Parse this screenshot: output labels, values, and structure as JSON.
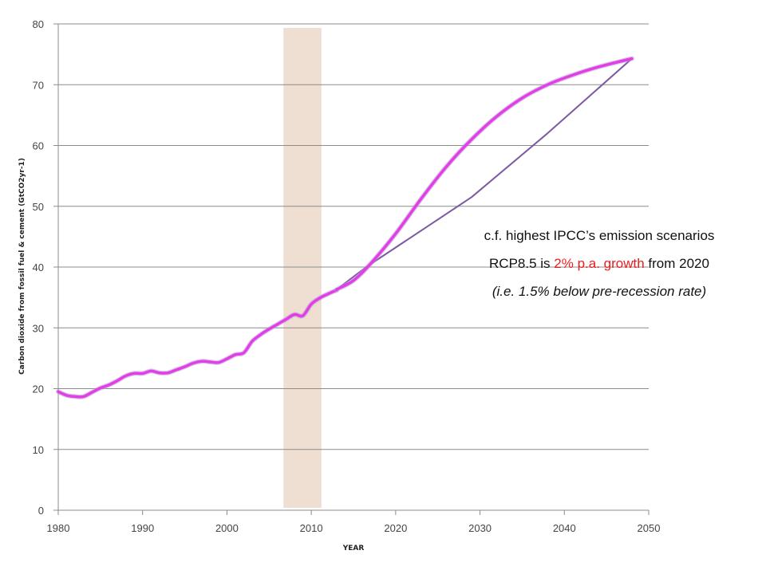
{
  "chart_data": {
    "type": "line",
    "xlabel": "YEAR",
    "ylabel": "Carbon dioxide from fossil fuel & cement (GtCO2yr-1)",
    "xlim": [
      1980,
      2050
    ],
    "ylim": [
      0,
      80
    ],
    "x_ticks": [
      1980,
      1990,
      2000,
      2010,
      2020,
      2030,
      2040,
      2050
    ],
    "y_ticks": [
      0,
      10,
      20,
      30,
      40,
      50,
      60,
      70,
      80
    ],
    "grid": "horizontal",
    "highlight_band": {
      "x_start": 2006.7,
      "x_end": 2011.2,
      "color": "#eedfd2"
    },
    "series": [
      {
        "color": "#e23ee8",
        "x": [
          1980,
          1981,
          1982,
          1983,
          1984,
          1985,
          1986,
          1987,
          1988,
          1989,
          1990,
          1991,
          1992,
          1993,
          1994,
          1995,
          1996,
          1997,
          1998,
          1999,
          2000,
          2001,
          2002,
          2003,
          2004,
          2005,
          2006,
          2007,
          2008,
          2009,
          2010,
          2011,
          2012,
          2013
        ],
        "y": [
          19.5,
          18.9,
          18.7,
          18.7,
          19.4,
          20.1,
          20.6,
          21.3,
          22.1,
          22.5,
          22.5,
          22.9,
          22.6,
          22.6,
          23.1,
          23.6,
          24.2,
          24.5,
          24.4,
          24.3,
          24.9,
          25.6,
          25.9,
          27.8,
          28.9,
          29.8,
          30.6,
          31.4,
          32.2,
          32.0,
          33.9,
          34.9,
          35.6,
          36.2
        ]
      },
      {
        "color": "#e23ee8",
        "x": [
          2013,
          2015,
          2017,
          2020,
          2023,
          2026,
          2029,
          2032,
          2035,
          2038,
          2041,
          2044,
          2048
        ],
        "y": [
          36.3,
          37.8,
          40.5,
          45.5,
          51.2,
          56.5,
          61.0,
          64.8,
          67.8,
          70.0,
          71.6,
          72.9,
          74.3
        ]
      },
      {
        "color": "#7b5aa2",
        "x": [
          2013,
          2016.5,
          2029,
          2038,
          2048
        ],
        "y": [
          36.3,
          40.0,
          51.5,
          62.0,
          74.3
        ]
      }
    ]
  },
  "annotation": {
    "line1": "c.f. highest IPCC’s emission scenarios",
    "line2_prefix": "RCP8.5 is ",
    "line2_highlight": "2% p.a. growth",
    "line2_suffix": " from 2020",
    "line3": "(i.e. 1.5% below pre-recession rate)",
    "highlight_color": "#ee1c1c"
  }
}
